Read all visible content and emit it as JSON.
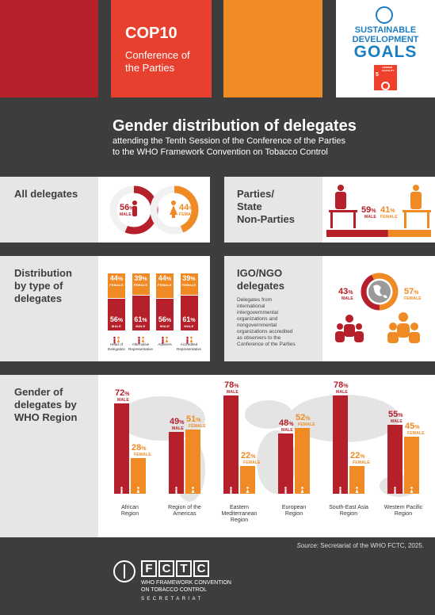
{
  "header": {
    "cop_title": "COP10",
    "cop_subtitle_1": "Conference of",
    "cop_subtitle_2": "the Parties",
    "sdg_line1": "SUSTAINABLE",
    "sdg_line2": "DEVELOPMENT",
    "sdg_line3": "GOALS",
    "sdg5_number": "5",
    "sdg5_label": "GENDER EQUALITY"
  },
  "title": {
    "main": "Gender distribution of delegates",
    "sub_1": "attending the Tenth Session of the Conference of the Parties",
    "sub_2": "to the WHO Framework Convention on Tobacco Control"
  },
  "labels": {
    "male": "MALE",
    "female": "FEMALE",
    "percent": "%"
  },
  "colors": {
    "male": "#b5202a",
    "female": "#f08a24",
    "dark": "#3d3d3d"
  },
  "all_delegates": {
    "title": "All delegates",
    "male": 56,
    "female": 44
  },
  "parties": {
    "title_1": "Parties/",
    "title_2": "State",
    "title_3": "Non-Parties",
    "male": 59,
    "female": 41
  },
  "distribution": {
    "title_1": "Distribution",
    "title_2": "by type of",
    "title_3": "delegates",
    "columns": [
      {
        "label_1": "Head of",
        "label_2": "Delegation",
        "male": 56,
        "female": 44
      },
      {
        "label_1": "Alternative",
        "label_2": "Representative",
        "male": 61,
        "female": 39
      },
      {
        "label_1": "Advisers",
        "label_2": "",
        "male": 56,
        "female": 44
      },
      {
        "label_1": "Accredited",
        "label_2": "Representative",
        "male": 61,
        "female": 39
      }
    ]
  },
  "igo": {
    "title_1": "IGO/NGO",
    "title_2": "delegates",
    "desc_1": "Delegates from",
    "desc_2": "international",
    "desc_3": "intergovernmental",
    "desc_4": "organizations and",
    "desc_5": "nongovernmental",
    "desc_6": "organizations accredited",
    "desc_7": "as observers to the",
    "desc_8": "Conference of the Parties",
    "male": 43,
    "female": 57
  },
  "region": {
    "title_1": "Gender of",
    "title_2": "delegates by",
    "title_3": "WHO Region"
  },
  "chart_data": {
    "type": "bar",
    "categories": [
      "African Region",
      "Region of the Americas",
      "Eastern Mediterranean Region",
      "European Region",
      "South-East Asia Region",
      "Western Pacific Region"
    ],
    "category_lines": [
      [
        "African",
        "Region"
      ],
      [
        "Region of the",
        "Americas"
      ],
      [
        "Eastern",
        "Mediterranean",
        "Region"
      ],
      [
        "European",
        "Region"
      ],
      [
        "South-East Asia",
        "Region"
      ],
      [
        "Western Pacific",
        "Region"
      ]
    ],
    "series": [
      {
        "name": "MALE",
        "values": [
          72,
          49,
          78,
          48,
          78,
          55
        ]
      },
      {
        "name": "FEMALE",
        "values": [
          28,
          51,
          22,
          52,
          22,
          45
        ]
      }
    ],
    "ylim": [
      0,
      100
    ]
  },
  "footer": {
    "source_label": "Source",
    "source_text": ": Secretariat of the WHO FCTC, 2025.",
    "logo_text": "FCTC",
    "fctc_line1": "WHO FRAMEWORK CONVENTION",
    "fctc_line2": "ON TOBACCO CONTROL",
    "fctc_line3": "SECRETARIAT"
  }
}
